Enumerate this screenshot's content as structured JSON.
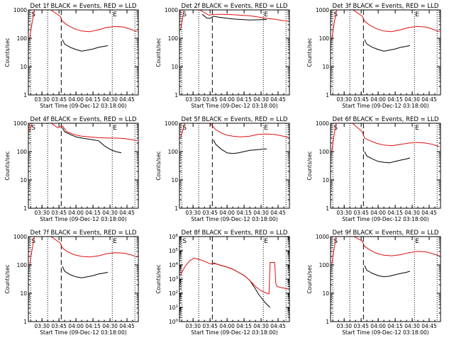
{
  "figure": {
    "colors": {
      "events": "#000000",
      "lld": "#e01010",
      "axes": "#000000"
    }
  },
  "chart_data": [
    {
      "type": "line",
      "title": "Det 1f BLACK = Events, RED = LLD",
      "xlabel": "Start Time (09-Dec-12 03:18:00)",
      "ylabel": "Counts/sec",
      "xlim": [
        "03:18",
        "04:55"
      ],
      "xticks": [
        "03:30",
        "03:45",
        "04:00",
        "04:15",
        "04:30",
        "04:45"
      ],
      "yscale": "log",
      "ylim": [
        1,
        1000
      ],
      "yticks": [
        "1",
        "10",
        "100",
        "1000"
      ],
      "markers": [
        "S",
        "E"
      ],
      "vlines": {
        "dotted": [
          "03:20",
          "03:35",
          "04:32",
          "04:52"
        ],
        "dashed": [
          "03:47"
        ]
      },
      "series": [
        {
          "name": "Events",
          "color": "black",
          "x": [
            "03:48",
            "03:50",
            "03:55",
            "04:00",
            "04:05",
            "04:10",
            "04:15",
            "04:20",
            "04:25",
            "04:28"
          ],
          "y": [
            90,
            62,
            48,
            40,
            35,
            38,
            42,
            48,
            52,
            55
          ]
        },
        {
          "name": "LLD",
          "color": "red",
          "x": [
            "03:19",
            "03:21",
            "03:23",
            "03:26",
            "03:35",
            "03:46",
            "03:48",
            "03:52",
            "03:58",
            "04:05",
            "04:12",
            "04:20",
            "04:27",
            "04:35",
            "04:42",
            "04:48",
            "04:54"
          ],
          "y": [
            90,
            300,
            900,
            1400,
            1200,
            600,
            400,
            300,
            220,
            180,
            170,
            200,
            240,
            260,
            250,
            210,
            170
          ]
        }
      ]
    },
    {
      "type": "line",
      "title": "Det 2f BLACK = Events, RED = LLD",
      "xlabel": "Start Time (09-Dec-12 03:18:00)",
      "ylabel": "Counts/sec",
      "xlim": [
        "03:18",
        "04:55"
      ],
      "xticks": [
        "03:30",
        "03:45",
        "04:00",
        "04:15",
        "04:30",
        "04:45"
      ],
      "yscale": "log",
      "ylim": [
        1,
        1000
      ],
      "yticks": [
        "1",
        "10",
        "100",
        "1000"
      ],
      "markers": [
        "S",
        "E"
      ],
      "vlines": {
        "dotted": [
          "03:20",
          "03:35",
          "04:32",
          "04:52"
        ],
        "dashed": [
          "03:47"
        ]
      },
      "series": [
        {
          "name": "Events",
          "color": "black",
          "x": [
            "03:38",
            "03:42",
            "03:45",
            "03:48",
            "03:52",
            "03:58",
            "04:05",
            "04:12",
            "04:20",
            "04:28",
            "04:35"
          ],
          "y": [
            700,
            520,
            500,
            600,
            560,
            520,
            480,
            460,
            440,
            450,
            460
          ]
        },
        {
          "name": "LLD",
          "color": "red",
          "x": [
            "03:19",
            "03:22",
            "03:26",
            "03:32",
            "03:38",
            "03:44",
            "03:48",
            "03:52",
            "03:58",
            "04:05",
            "04:12",
            "04:20",
            "04:28",
            "04:35",
            "04:42",
            "04:48",
            "04:54"
          ],
          "y": [
            200,
            1000,
            1400,
            1200,
            900,
            650,
            700,
            700,
            690,
            680,
            650,
            620,
            560,
            500,
            470,
            430,
            400
          ]
        }
      ]
    },
    {
      "type": "line",
      "title": "Det 3f BLACK = Events, RED = LLD",
      "xlabel": "Start Time (09-Dec-12 03:18:00)",
      "ylabel": "Counts/sec",
      "xlim": [
        "03:18",
        "04:55"
      ],
      "xticks": [
        "03:30",
        "03:45",
        "04:00",
        "04:15",
        "04:30",
        "04:45"
      ],
      "yscale": "log",
      "ylim": [
        1,
        1000
      ],
      "yticks": [
        "1",
        "10",
        "100",
        "1000"
      ],
      "markers": [
        "S",
        "E"
      ],
      "vlines": {
        "dotted": [
          "03:20",
          "03:35",
          "04:32",
          "04:52"
        ],
        "dashed": [
          "03:47"
        ]
      },
      "series": [
        {
          "name": "Events",
          "color": "black",
          "x": [
            "03:48",
            "03:50",
            "03:55",
            "04:00",
            "04:05",
            "04:10",
            "04:15",
            "04:20",
            "04:25",
            "04:28"
          ],
          "y": [
            90,
            62,
            48,
            40,
            35,
            38,
            42,
            48,
            52,
            55
          ]
        },
        {
          "name": "LLD",
          "color": "red",
          "x": [
            "03:19",
            "03:21",
            "03:23",
            "03:26",
            "03:35",
            "03:46",
            "03:48",
            "03:52",
            "03:58",
            "04:05",
            "04:12",
            "04:20",
            "04:27",
            "04:35",
            "04:42",
            "04:48",
            "04:54"
          ],
          "y": [
            90,
            300,
            900,
            1400,
            1200,
            600,
            400,
            300,
            220,
            180,
            170,
            200,
            240,
            260,
            250,
            210,
            170
          ]
        }
      ]
    },
    {
      "type": "line",
      "title": "Det 4f BLACK = Events, RED = LLD",
      "xlabel": "Start Time (09-Dec-12 03:18:00)",
      "ylabel": "Counts/sec",
      "xlim": [
        "03:18",
        "04:55"
      ],
      "xticks": [
        "03:30",
        "03:45",
        "04:00",
        "04:15",
        "04:30",
        "04:45"
      ],
      "yscale": "log",
      "ylim": [
        1,
        1000
      ],
      "yticks": [
        "1",
        "10",
        "100",
        "1000"
      ],
      "markers": [
        "S",
        "E"
      ],
      "vlines": {
        "dotted": [
          "03:20",
          "03:35",
          "04:32",
          "04:52"
        ],
        "dashed": [
          "03:47"
        ]
      },
      "series": [
        {
          "name": "Events",
          "color": "black",
          "x": [
            "03:48",
            "03:50",
            "03:55",
            "04:00",
            "04:05",
            "04:10",
            "04:15",
            "04:20",
            "04:25",
            "04:30",
            "04:35",
            "04:40"
          ],
          "y": [
            700,
            500,
            400,
            330,
            300,
            280,
            260,
            240,
            160,
            120,
            100,
            90
          ]
        },
        {
          "name": "LLD",
          "color": "red",
          "x": [
            "03:19",
            "03:22",
            "03:26",
            "03:32",
            "03:38",
            "03:44",
            "03:48",
            "03:52",
            "03:58",
            "04:05",
            "04:12",
            "04:20",
            "04:28",
            "04:35",
            "04:42",
            "04:48",
            "04:54"
          ],
          "y": [
            500,
            1200,
            1400,
            1300,
            1000,
            700,
            800,
            500,
            400,
            350,
            330,
            310,
            300,
            300,
            290,
            270,
            240
          ]
        }
      ]
    },
    {
      "type": "line",
      "title": "Det 5f BLACK = Events, RED = LLD",
      "xlabel": "Start Time (09-Dec-12 03:18:00)",
      "ylabel": "Counts/sec",
      "xlim": [
        "03:18",
        "04:55"
      ],
      "xticks": [
        "03:30",
        "03:45",
        "04:00",
        "04:15",
        "04:30",
        "04:45"
      ],
      "yscale": "log",
      "ylim": [
        1,
        1000
      ],
      "yticks": [
        "1",
        "10",
        "100",
        "1000"
      ],
      "markers": [
        "S",
        "E"
      ],
      "vlines": {
        "dotted": [
          "03:20",
          "03:35",
          "04:32",
          "04:52"
        ],
        "dashed": [
          "03:47"
        ]
      },
      "series": [
        {
          "name": "Events",
          "color": "black",
          "x": [
            "03:48",
            "03:50",
            "03:55",
            "04:00",
            "04:05",
            "04:10",
            "04:15",
            "04:20",
            "04:25",
            "04:30",
            "04:35"
          ],
          "y": [
            260,
            180,
            120,
            90,
            85,
            90,
            100,
            110,
            115,
            120,
            125
          ]
        },
        {
          "name": "LLD",
          "color": "red",
          "x": [
            "03:19",
            "03:23",
            "03:28",
            "03:35",
            "03:42",
            "03:46",
            "03:50",
            "03:55",
            "04:00",
            "04:05",
            "04:12",
            "04:20",
            "04:27",
            "04:35",
            "04:42",
            "04:48",
            "04:54"
          ],
          "y": [
            300,
            1100,
            1500,
            1400,
            1200,
            900,
            600,
            450,
            380,
            350,
            330,
            350,
            400,
            420,
            400,
            360,
            320
          ]
        }
      ]
    },
    {
      "type": "line",
      "title": "Det 6f BLACK = Events, RED = LLD",
      "xlabel": "Start Time (09-Dec-12 03:18:00)",
      "ylabel": "Counts/sec",
      "xlim": [
        "03:18",
        "04:55"
      ],
      "xticks": [
        "03:30",
        "03:45",
        "04:00",
        "04:15",
        "04:30",
        "04:45"
      ],
      "yscale": "log",
      "ylim": [
        1,
        1000
      ],
      "yticks": [
        "1",
        "10",
        "100",
        "1000"
      ],
      "markers": [
        "S",
        "E"
      ],
      "vlines": {
        "dotted": [
          "03:20",
          "03:35",
          "04:32",
          "04:52"
        ],
        "dashed": [
          "03:47"
        ]
      },
      "series": [
        {
          "name": "Events",
          "color": "black",
          "x": [
            "03:48",
            "03:50",
            "03:55",
            "04:00",
            "04:05",
            "04:10",
            "04:15",
            "04:20",
            "04:25",
            "04:28"
          ],
          "y": [
            100,
            70,
            55,
            45,
            42,
            40,
            45,
            50,
            55,
            60
          ]
        },
        {
          "name": "LLD",
          "color": "red",
          "x": [
            "03:19",
            "03:21",
            "03:23",
            "03:26",
            "03:35",
            "03:46",
            "03:48",
            "03:52",
            "03:58",
            "04:05",
            "04:12",
            "04:20",
            "04:27",
            "04:35",
            "04:42",
            "04:48",
            "04:54"
          ],
          "y": [
            100,
            350,
            1000,
            1400,
            1200,
            500,
            300,
            250,
            200,
            170,
            160,
            180,
            200,
            210,
            200,
            180,
            150
          ]
        }
      ]
    },
    {
      "type": "line",
      "title": "Det 7f BLACK = Events, RED = LLD",
      "xlabel": "Start Time (09-Dec-12 03:18:00)",
      "ylabel": "Counts/sec",
      "xlim": [
        "03:18",
        "04:55"
      ],
      "xticks": [
        "03:30",
        "03:45",
        "04:00",
        "04:15",
        "04:30",
        "04:45"
      ],
      "yscale": "log",
      "ylim": [
        1,
        1000
      ],
      "yticks": [
        "1",
        "10",
        "100",
        "1000"
      ],
      "markers": [
        "S",
        "E"
      ],
      "vlines": {
        "dotted": [
          "03:20",
          "03:35",
          "04:32",
          "04:52"
        ],
        "dashed": [
          "03:47"
        ]
      },
      "series": [
        {
          "name": "Events",
          "color": "black",
          "x": [
            "03:48",
            "03:50",
            "03:55",
            "04:00",
            "04:05",
            "04:10",
            "04:15",
            "04:20",
            "04:25",
            "04:28"
          ],
          "y": [
            90,
            60,
            45,
            38,
            35,
            38,
            42,
            48,
            52,
            55
          ]
        },
        {
          "name": "LLD",
          "color": "red",
          "x": [
            "03:19",
            "03:21",
            "03:23",
            "03:26",
            "03:35",
            "03:46",
            "03:48",
            "03:52",
            "03:58",
            "04:05",
            "04:12",
            "04:20",
            "04:27",
            "04:35",
            "04:42",
            "04:48",
            "04:54"
          ],
          "y": [
            90,
            300,
            900,
            1400,
            1200,
            600,
            400,
            300,
            230,
            200,
            190,
            210,
            250,
            270,
            260,
            230,
            190
          ]
        }
      ]
    },
    {
      "type": "line",
      "title": "Det 8f BLACK = Events, RED = LLD",
      "xlabel": "Start Time (09-Dec-12 03:18:00)",
      "ylabel": "Counts/sec",
      "xlim": [
        "03:18",
        "04:55"
      ],
      "xticks": [
        "03:30",
        "03:45",
        "04:00",
        "04:15",
        "04:30",
        "04:45"
      ],
      "yscale": "log",
      "ylim": [
        1,
        1000000
      ],
      "yticks": [
        "10^0",
        "10^1",
        "10^2",
        "10^3",
        "10^4",
        "10^5",
        "10^6"
      ],
      "markers": [
        "S",
        "E"
      ],
      "vlines": {
        "dotted": [
          "03:20",
          "03:35",
          "04:32",
          "04:52"
        ],
        "dashed": [
          "03:47"
        ]
      },
      "series": [
        {
          "name": "Events",
          "color": "black",
          "x": [
            "03:48",
            "03:50",
            "03:55",
            "04:00",
            "04:05",
            "04:10",
            "04:15",
            "04:20",
            "04:25",
            "04:28",
            "04:30",
            "04:34",
            "04:38"
          ],
          "y": [
            14000,
            12000,
            9000,
            7000,
            5000,
            3000,
            1800,
            800,
            200,
            80,
            50,
            20,
            10
          ]
        },
        {
          "name": "LLD",
          "color": "red",
          "x": [
            "03:19",
            "03:23",
            "03:27",
            "03:31",
            "03:35",
            "03:40",
            "03:45",
            "03:50",
            "03:55",
            "04:00",
            "04:05",
            "04:10",
            "04:15",
            "04:20",
            "04:25",
            "04:30",
            "04:35",
            "04:37",
            "04:38",
            "04:42",
            "04:43",
            "04:44",
            "04:48",
            "04:54"
          ],
          "y": [
            2000,
            8000,
            20000,
            30000,
            25000,
            18000,
            12000,
            12000,
            9000,
            7000,
            5000,
            3000,
            1800,
            800,
            300,
            150,
            100,
            90,
            15000,
            15000,
            500,
            300,
            250,
            200
          ]
        }
      ]
    },
    {
      "type": "line",
      "title": "Det 9f BLACK = Events, RED = LLD",
      "xlabel": "Start Time (09-Dec-12 03:18:00)",
      "ylabel": "Counts/sec",
      "xlim": [
        "03:18",
        "04:55"
      ],
      "xticks": [
        "03:30",
        "03:45",
        "04:00",
        "04:15",
        "04:30",
        "04:45"
      ],
      "yscale": "log",
      "ylim": [
        1,
        1000
      ],
      "yticks": [
        "1",
        "10",
        "100",
        "1000"
      ],
      "markers": [
        "S",
        "E"
      ],
      "vlines": {
        "dotted": [
          "03:20",
          "03:35",
          "04:32",
          "04:52"
        ],
        "dashed": [
          "03:47"
        ]
      },
      "series": [
        {
          "name": "Events",
          "color": "black",
          "x": [
            "03:48",
            "03:50",
            "03:55",
            "04:00",
            "04:05",
            "04:10",
            "04:15",
            "04:20",
            "04:25",
            "04:28"
          ],
          "y": [
            95,
            65,
            50,
            42,
            38,
            40,
            45,
            50,
            55,
            60
          ]
        },
        {
          "name": "LLD",
          "color": "red",
          "x": [
            "03:19",
            "03:21",
            "03:23",
            "03:26",
            "03:35",
            "03:46",
            "03:48",
            "03:52",
            "03:58",
            "04:05",
            "04:12",
            "04:20",
            "04:27",
            "04:35",
            "04:42",
            "04:48",
            "04:54"
          ],
          "y": [
            100,
            350,
            1000,
            1400,
            1200,
            700,
            450,
            350,
            260,
            220,
            210,
            230,
            270,
            300,
            290,
            250,
            210
          ]
        }
      ]
    }
  ]
}
